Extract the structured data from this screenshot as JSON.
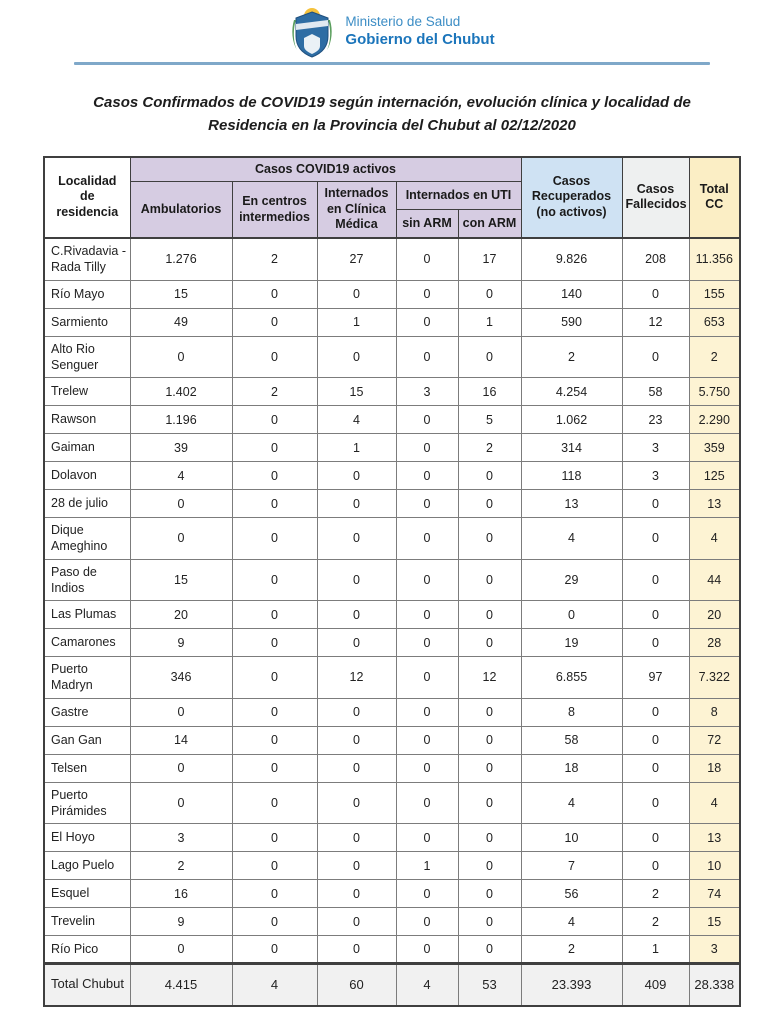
{
  "brand": {
    "ministry": "Ministerio de Salud",
    "government": "Gobierno del Chubut"
  },
  "title": "Casos Confirmados de COVID19 según internación, evolución clínica y localidad de Residencia en la Provincia del Chubut al 02/12/2020",
  "colors": {
    "brand_blue": "#1b75bb",
    "brand_light_blue": "#3c8dc5",
    "rule_blue": "#7fa8c9",
    "header_purple": "#d6cce2",
    "header_blue": "#cfe2f3",
    "header_gray": "#eef0f0",
    "header_yellow": "#fbeec5",
    "total_col_yellow": "#fdf3d3",
    "total_row_gray": "#f1f1f1"
  },
  "table": {
    "headers": {
      "locality": "Localidad\nde residencia",
      "active_group": "Casos COVID19 activos",
      "ambulatory": "Ambulatorios",
      "intermediate": "En centros\nintermedios",
      "clinical": "Internados\nen Clínica\nMédica",
      "uti_group": "Internados en UTI",
      "without_arm": "sin ARM",
      "with_arm": "con ARM",
      "recovered": "Casos\nRecuperados\n(no activos)",
      "deceased": "Casos\nFallecidos",
      "total": "Total\nCC"
    },
    "rows": [
      {
        "locality": "C.Rivadavia - Rada Tilly",
        "values": [
          "1.276",
          "2",
          "27",
          "0",
          "17",
          "9.826",
          "208",
          "11.356"
        ]
      },
      {
        "locality": "Río Mayo",
        "values": [
          "15",
          "0",
          "0",
          "0",
          "0",
          "140",
          "0",
          "155"
        ]
      },
      {
        "locality": "Sarmiento",
        "values": [
          "49",
          "0",
          "1",
          "0",
          "1",
          "590",
          "12",
          "653"
        ]
      },
      {
        "locality": "Alto Rio Senguer",
        "values": [
          "0",
          "0",
          "0",
          "0",
          "0",
          "2",
          "0",
          "2"
        ]
      },
      {
        "locality": "Trelew",
        "values": [
          "1.402",
          "2",
          "15",
          "3",
          "16",
          "4.254",
          "58",
          "5.750"
        ]
      },
      {
        "locality": "Rawson",
        "values": [
          "1.196",
          "0",
          "4",
          "0",
          "5",
          "1.062",
          "23",
          "2.290"
        ]
      },
      {
        "locality": "Gaiman",
        "values": [
          "39",
          "0",
          "1",
          "0",
          "2",
          "314",
          "3",
          "359"
        ]
      },
      {
        "locality": "Dolavon",
        "values": [
          "4",
          "0",
          "0",
          "0",
          "0",
          "118",
          "3",
          "125"
        ]
      },
      {
        "locality": "28 de julio",
        "values": [
          "0",
          "0",
          "0",
          "0",
          "0",
          "13",
          "0",
          "13"
        ]
      },
      {
        "locality": "Dique Ameghino",
        "values": [
          "0",
          "0",
          "0",
          "0",
          "0",
          "4",
          "0",
          "4"
        ]
      },
      {
        "locality": "Paso de Indios",
        "values": [
          "15",
          "0",
          "0",
          "0",
          "0",
          "29",
          "0",
          "44"
        ]
      },
      {
        "locality": "Las Plumas",
        "values": [
          "20",
          "0",
          "0",
          "0",
          "0",
          "0",
          "0",
          "20"
        ]
      },
      {
        "locality": "Camarones",
        "values": [
          "9",
          "0",
          "0",
          "0",
          "0",
          "19",
          "0",
          "28"
        ]
      },
      {
        "locality": "Puerto Madryn",
        "values": [
          "346",
          "0",
          "12",
          "0",
          "12",
          "6.855",
          "97",
          "7.322"
        ]
      },
      {
        "locality": "Gastre",
        "values": [
          "0",
          "0",
          "0",
          "0",
          "0",
          "8",
          "0",
          "8"
        ]
      },
      {
        "locality": "Gan Gan",
        "values": [
          "14",
          "0",
          "0",
          "0",
          "0",
          "58",
          "0",
          "72"
        ]
      },
      {
        "locality": "Telsen",
        "values": [
          "0",
          "0",
          "0",
          "0",
          "0",
          "18",
          "0",
          "18"
        ]
      },
      {
        "locality": "Puerto Pirámides",
        "values": [
          "0",
          "0",
          "0",
          "0",
          "0",
          "4",
          "0",
          "4"
        ]
      },
      {
        "locality": "El Hoyo",
        "values": [
          "3",
          "0",
          "0",
          "0",
          "0",
          "10",
          "0",
          "13"
        ]
      },
      {
        "locality": "Lago Puelo",
        "values": [
          "2",
          "0",
          "0",
          "1",
          "0",
          "7",
          "0",
          "10"
        ]
      },
      {
        "locality": "Esquel",
        "values": [
          "16",
          "0",
          "0",
          "0",
          "0",
          "56",
          "2",
          "74"
        ]
      },
      {
        "locality": "Trevelin",
        "values": [
          "9",
          "0",
          "0",
          "0",
          "0",
          "4",
          "2",
          "15"
        ]
      },
      {
        "locality": "Río Pico",
        "values": [
          "0",
          "0",
          "0",
          "0",
          "0",
          "2",
          "1",
          "3"
        ]
      }
    ],
    "total_row": {
      "locality": "Total Chubut",
      "values": [
        "4.415",
        "4",
        "60",
        "4",
        "53",
        "23.393",
        "409",
        "28.338"
      ]
    }
  }
}
